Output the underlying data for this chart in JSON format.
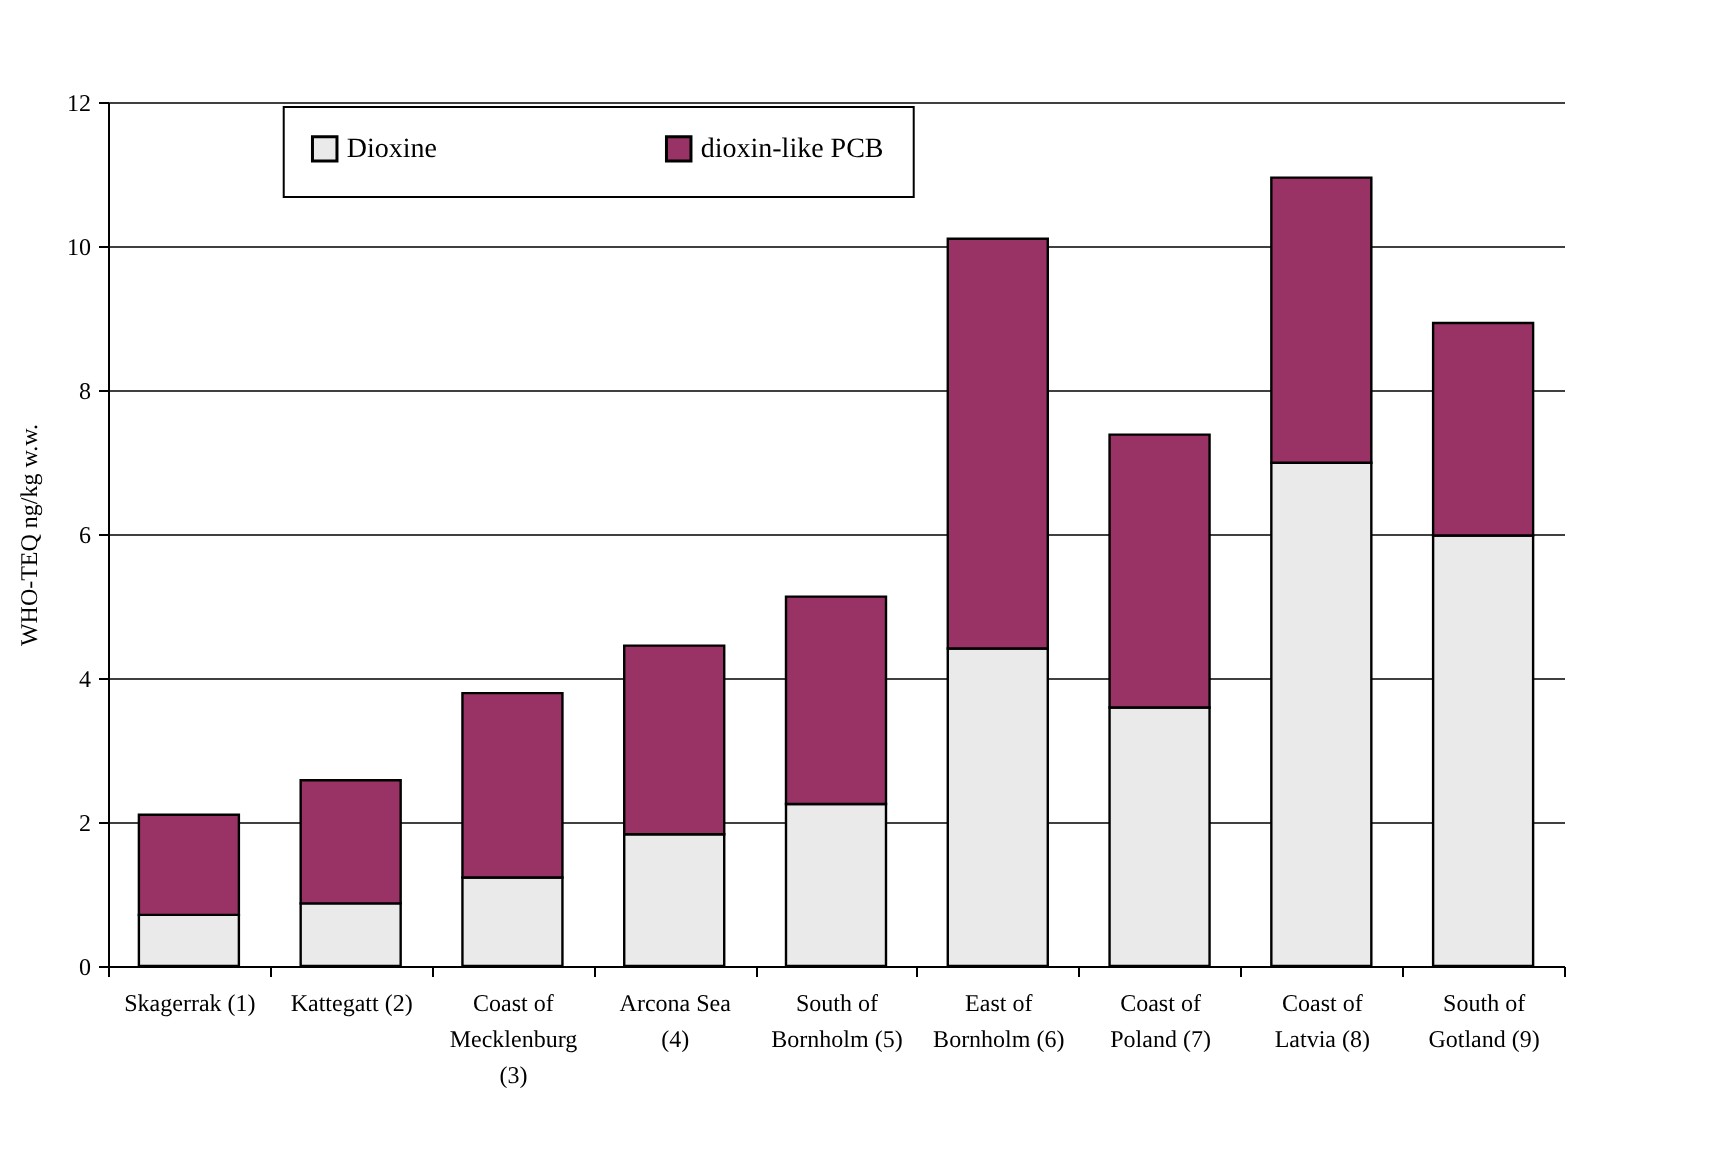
{
  "chart_data": {
    "type": "bar",
    "stacked": true,
    "ylabel": "WHO-TEQ ng/kg w.w.",
    "categories": [
      "Skagerrak (1)",
      "Kattegatt (2)",
      "Coast of Mecklenburg (3)",
      "Arcona Sea (4)",
      "South of Bornholm (5)",
      "East of Bornholm (6)",
      "Coast of Poland (7)",
      "Coast of Latvia (8)",
      "South of Gotland (9)"
    ],
    "series": [
      {
        "name": "Dioxine",
        "color": "#eaeaea",
        "values": [
          0.71,
          0.87,
          1.23,
          1.83,
          2.25,
          4.41,
          3.59,
          6.99,
          5.98
        ]
      },
      {
        "name": "dioxin-like PCB",
        "color": "#993366",
        "values": [
          1.39,
          1.71,
          2.56,
          2.62,
          2.88,
          5.69,
          3.79,
          3.96,
          2.95
        ]
      }
    ],
    "ylim": [
      0,
      12
    ],
    "yticks": [
      0,
      2,
      4,
      6,
      8,
      10,
      12
    ],
    "grid": "y",
    "legend": "top"
  }
}
